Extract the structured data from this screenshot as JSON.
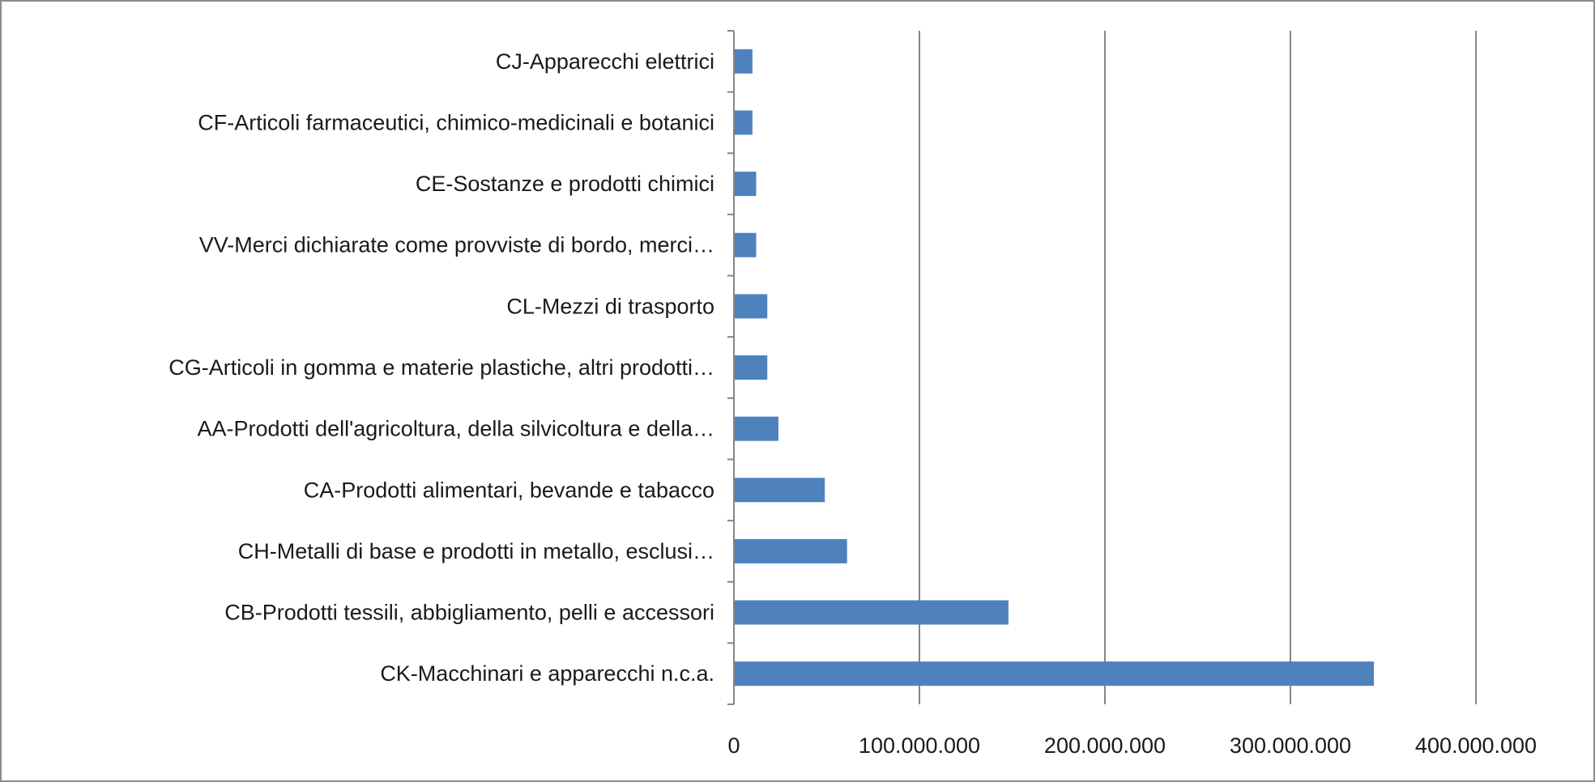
{
  "chart_data": {
    "type": "bar",
    "orientation": "horizontal",
    "categories": [
      "CK-Macchinari e apparecchi n.c.a.",
      "CB-Prodotti tessili, abbigliamento, pelli e accessori",
      "CH-Metalli di base e prodotti in metallo, esclusi…",
      "CA-Prodotti alimentari, bevande e tabacco",
      "AA-Prodotti dell'agricoltura, della silvicoltura e della…",
      "CG-Articoli in gomma e materie plastiche, altri prodotti…",
      "CL-Mezzi di trasporto",
      "VV-Merci dichiarate come provviste di bordo, merci…",
      "CE-Sostanze e prodotti chimici",
      "CF-Articoli farmaceutici, chimico-medicinali e botanici",
      "CJ-Apparecchi elettrici"
    ],
    "values": [
      345000000,
      148000000,
      61000000,
      49000000,
      24000000,
      18000000,
      18000000,
      12000000,
      12000000,
      10000000,
      10000000
    ],
    "xlim": [
      0,
      400000000
    ],
    "ticks": [
      0,
      100000000,
      200000000,
      300000000,
      400000000
    ],
    "tick_labels": [
      "0",
      "100.000.000",
      "200.000.000",
      "300.000.000",
      "400.000.000"
    ],
    "title": "",
    "xlabel": "",
    "ylabel": "",
    "grid": "vertical",
    "legend": "none",
    "colors": {
      "bar": "#4f81bd",
      "grid": "#868686",
      "axis": "#868686",
      "text": "#1a1a1a"
    }
  }
}
